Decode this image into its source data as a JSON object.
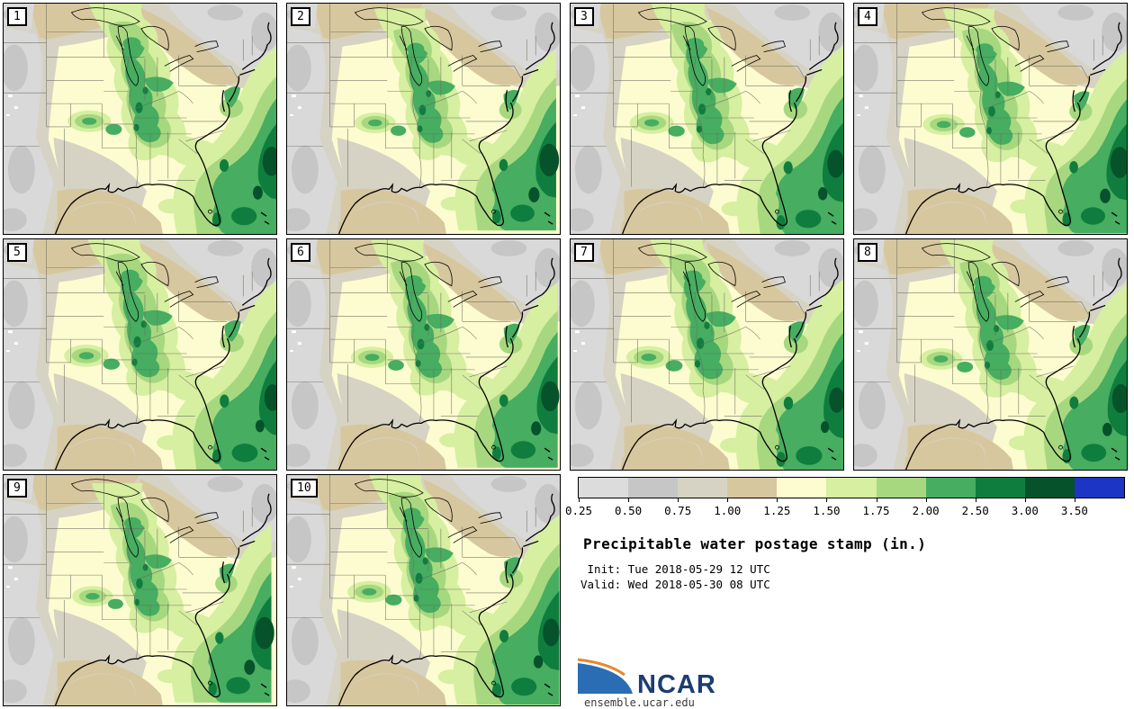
{
  "figure": {
    "title": "Precipitable water postage stamp (in.)",
    "init_line": " Init: Tue 2018-05-29 12 UTC",
    "valid_line": "Valid: Wed 2018-05-30 08 UTC"
  },
  "panels": [
    {
      "label": "1"
    },
    {
      "label": "2"
    },
    {
      "label": "3"
    },
    {
      "label": "4"
    },
    {
      "label": "5"
    },
    {
      "label": "6"
    },
    {
      "label": "7"
    },
    {
      "label": "8"
    },
    {
      "label": "9"
    },
    {
      "label": "10"
    }
  ],
  "colorbar": {
    "units": "in.",
    "ticks": [
      "0.25",
      "0.50",
      "0.75",
      "1.00",
      "1.25",
      "1.50",
      "1.75",
      "2.00",
      "2.50",
      "3.00",
      "3.50"
    ],
    "segment_colors": [
      "#dcdcdc",
      "#c6c6c6",
      "#d6d3c4",
      "#d7c79e",
      "#fcfcd0",
      "#d6efa0",
      "#a7d87f",
      "#46ad61",
      "#0f7d3e",
      "#06522a",
      "#1c35c5"
    ]
  },
  "map_palette": {
    "white_below_025": "#ffffff",
    "gray_025_050": "#d9d9d9",
    "gray_050_075": "#c6c6c6",
    "beige_075_100": "#d6d3c4",
    "tan_100_125": "#d7c79e",
    "pale_yellow_125_150": "#fcfcd0",
    "light_yellowgreen_150_175": "#d6efa0",
    "light_green_175_200": "#a7d87f",
    "medium_green_200_250": "#46ad61",
    "dark_green_250_300": "#0f7d3e",
    "darkest_green_300_350": "#06522a",
    "state_line": "#6e6b60",
    "coastline": "#000000"
  },
  "logo": {
    "text": "NCAR",
    "url": "ensemble.ucar.edu",
    "blue": "#2a6db5",
    "navy": "#1c3d72",
    "orange": "#e8872e"
  }
}
